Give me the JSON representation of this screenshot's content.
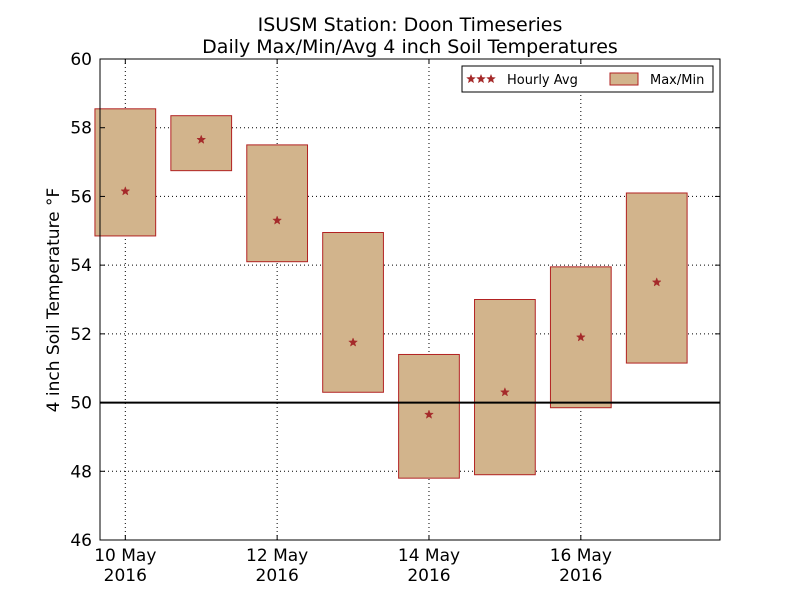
{
  "chart_data": {
    "type": "box-range",
    "title_lines": [
      "ISUSM Station: Doon Timeseries",
      "Daily Max/Min/Avg 4 inch Soil Temperatures"
    ],
    "ylabel": "4 inch Soil Temperature °F",
    "ylim": [
      46,
      60
    ],
    "yticks": [
      46,
      48,
      50,
      52,
      54,
      56,
      58,
      60
    ],
    "xlim": [
      "2016-05-09 16:00",
      "2016-05-17 20:00"
    ],
    "xticks": [
      {
        "date": "2016-05-10",
        "line1": "10 May",
        "line2": "2016"
      },
      {
        "date": "2016-05-12",
        "line1": "12 May",
        "line2": "2016"
      },
      {
        "date": "2016-05-14",
        "line1": "14 May",
        "line2": "2016"
      },
      {
        "date": "2016-05-16",
        "line1": "16 May",
        "line2": "2016"
      }
    ],
    "reference_line": 50,
    "grid": true,
    "legend_position": "top-right",
    "series": [
      {
        "name": "Hourly Avg",
        "marker": "star",
        "color": "#a52a2a"
      },
      {
        "name": "Max/Min",
        "marker": "box",
        "fill": "#d2b48c",
        "edge": "#b22222"
      }
    ],
    "data": [
      {
        "date": "2016-05-10",
        "min": 54.85,
        "max": 58.55,
        "avg": 56.15
      },
      {
        "date": "2016-05-11",
        "min": 56.75,
        "max": 58.35,
        "avg": 57.65
      },
      {
        "date": "2016-05-12",
        "min": 54.1,
        "max": 57.5,
        "avg": 55.3
      },
      {
        "date": "2016-05-13",
        "min": 50.3,
        "max": 54.95,
        "avg": 51.75
      },
      {
        "date": "2016-05-14",
        "min": 47.8,
        "max": 51.4,
        "avg": 49.65
      },
      {
        "date": "2016-05-15",
        "min": 47.9,
        "max": 53.0,
        "avg": 50.3
      },
      {
        "date": "2016-05-16",
        "min": 49.85,
        "max": 53.95,
        "avg": 51.9
      },
      {
        "date": "2016-05-17",
        "min": 51.15,
        "max": 56.1,
        "avg": 53.5
      }
    ]
  }
}
